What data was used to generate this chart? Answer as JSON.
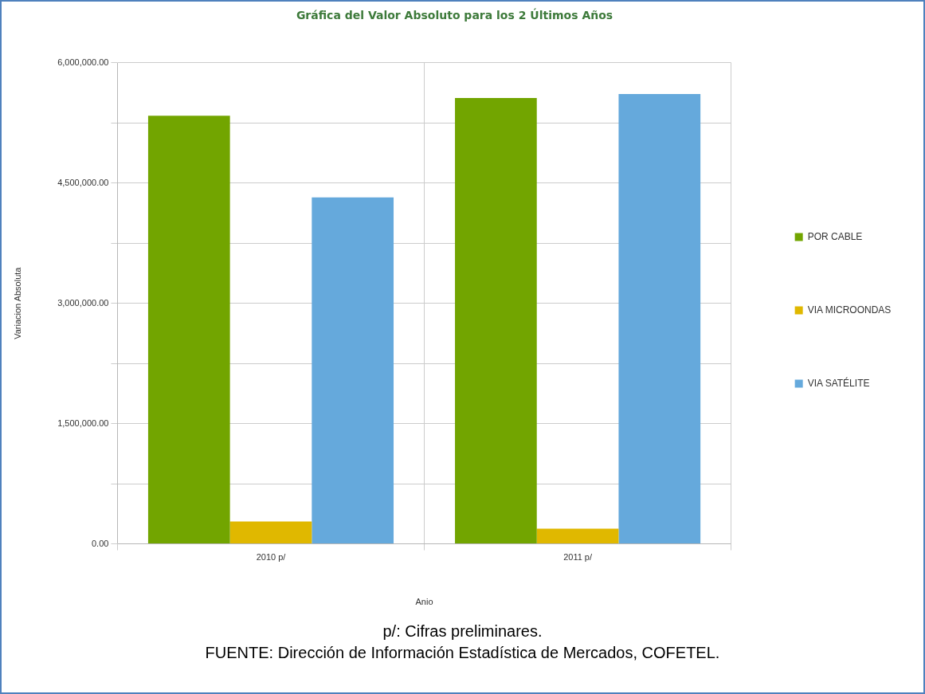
{
  "chart_data": {
    "type": "bar",
    "title": "Gráfica del Valor Absoluto para los 2 Últimos Años",
    "xlabel": "Anio",
    "ylabel": "Variacion Absoluta",
    "categories": [
      "2010 p/",
      "2011 p/"
    ],
    "series": [
      {
        "name": "POR CABLE",
        "color": "#72a500",
        "values": [
          5340000,
          5560000
        ]
      },
      {
        "name": "VIA MICROONDAS",
        "color": "#e0b800",
        "values": [
          280000,
          190000
        ]
      },
      {
        "name": "VIA SATÉLITE",
        "color": "#65a9dc",
        "values": [
          4320000,
          5610000
        ]
      }
    ],
    "ylim": [
      0,
      6000000
    ],
    "yticks": [
      {
        "value": 0,
        "label": "0.00"
      },
      {
        "value": 750000,
        "label": null
      },
      {
        "value": 1500000,
        "label": "1,500,000.00"
      },
      {
        "value": 2250000,
        "label": null
      },
      {
        "value": 3000000,
        "label": "3,000,000.00"
      },
      {
        "value": 3750000,
        "label": null
      },
      {
        "value": 4500000,
        "label": "4,500,000.00"
      },
      {
        "value": 5250000,
        "label": null
      },
      {
        "value": 6000000,
        "label": "6,000,000.00"
      }
    ],
    "grid": true,
    "legend": "right",
    "annotations": [
      "p/: Cifras preliminares.",
      "FUENTE: Dirección de Información Estadística de Mercados, COFETEL."
    ]
  }
}
